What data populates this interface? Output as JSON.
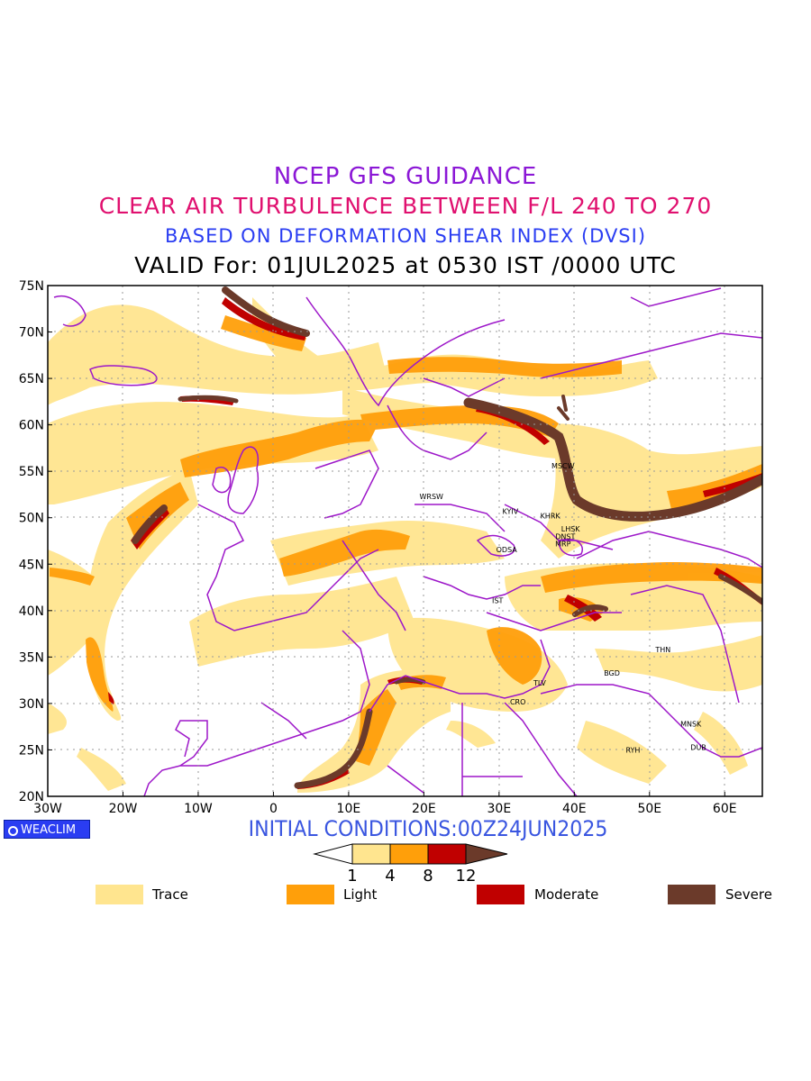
{
  "titles": {
    "line1": "NCEP GFS GUIDANCE",
    "line2": "CLEAR AIR TURBULENCE BETWEEN F/L 240 TO 270",
    "line3": "BASED ON DEFORMATION SHEAR INDEX (DVSI)",
    "line4": "VALID For: 01JUL2025 at 0530 IST /0000 UTC"
  },
  "colors": {
    "line1": "#8b17d6",
    "line2": "#e0106f",
    "line3": "#2a3df2",
    "trace": "#ffe58f",
    "light": "#ff9f0a",
    "moderate": "#c00000",
    "severe": "#6b3a2a",
    "boundary": "#9d17c9",
    "init": "#3a56e0"
  },
  "map": {
    "lat_labels": [
      "75N",
      "70N",
      "65N",
      "60N",
      "55N",
      "50N",
      "45N",
      "40N",
      "35N",
      "30N",
      "25N",
      "20N"
    ],
    "lon_labels": [
      "30W",
      "20W",
      "10W",
      "0",
      "10E",
      "20E",
      "30E",
      "40E",
      "50E",
      "60E"
    ],
    "lon_range": [
      -30,
      65
    ],
    "lat_range": [
      20,
      75
    ],
    "stations": [
      {
        "code": "MSCW",
        "lon": 38.5,
        "lat": 55.6
      },
      {
        "code": "WRSW",
        "lon": 21.0,
        "lat": 52.3
      },
      {
        "code": "KYIV",
        "lon": 31.5,
        "lat": 50.7
      },
      {
        "code": "KHRK",
        "lon": 36.8,
        "lat": 50.2
      },
      {
        "code": "LHSK",
        "lon": 39.5,
        "lat": 48.8
      },
      {
        "code": "DNST",
        "lon": 38.8,
        "lat": 48.0
      },
      {
        "code": "MRP",
        "lon": 38.5,
        "lat": 47.2
      },
      {
        "code": "ODSA",
        "lon": 31.0,
        "lat": 46.6
      },
      {
        "code": "IST",
        "lon": 29.8,
        "lat": 41.1
      },
      {
        "code": "THN",
        "lon": 51.8,
        "lat": 35.8
      },
      {
        "code": "BGD",
        "lon": 45.0,
        "lat": 33.3
      },
      {
        "code": "TLV",
        "lon": 35.4,
        "lat": 32.2
      },
      {
        "code": "CRO",
        "lon": 32.5,
        "lat": 30.2
      },
      {
        "code": "MNSK",
        "lon": 55.5,
        "lat": 27.8
      },
      {
        "code": "DUB",
        "lon": 56.5,
        "lat": 25.3
      },
      {
        "code": "RYH",
        "lon": 47.8,
        "lat": 25.0
      }
    ]
  },
  "branding": {
    "label": "WEACLIM"
  },
  "initial": "INITIAL CONDITIONS:00Z24JUN2025",
  "colorbar": {
    "ticks": [
      "1",
      "4",
      "8",
      "12"
    ]
  },
  "legend": [
    {
      "label": "Trace",
      "color": "#ffe58f"
    },
    {
      "label": "Light",
      "color": "#ff9f0a"
    },
    {
      "label": "Moderate",
      "color": "#c00000"
    },
    {
      "label": "Severe",
      "color": "#6b3a2a"
    }
  ]
}
